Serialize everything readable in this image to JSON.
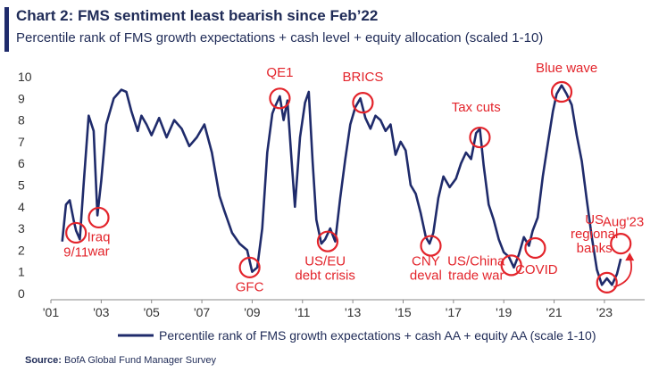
{
  "header": {
    "title": "Chart 2: FMS sentiment least bearish since Feb’22",
    "subtitle": "Percentile rank of FMS growth expectations + cash level + equity allocation (scaled 1-10)"
  },
  "footer": {
    "source_label": "Source:",
    "source_text": "BofA Global Fund Manager Survey"
  },
  "colors": {
    "line": "#1f2b6b",
    "annotation": "#e3242b",
    "accent": "#1f2b6b",
    "text": "#1f2b57"
  },
  "chart_data": {
    "type": "line",
    "title": "Chart 2: FMS sentiment least bearish since Feb’22",
    "subtitle": "Percentile rank of FMS growth expectations + cash level + equity allocation (scaled 1-10)",
    "xlabel": "",
    "ylabel": "",
    "xlim": [
      2001.0,
      2024.6
    ],
    "ylim": [
      0,
      10
    ],
    "y_ticks": [
      0,
      1,
      2,
      3,
      4,
      5,
      6,
      7,
      8,
      9,
      10
    ],
    "x_ticks": [
      2001,
      2003,
      2005,
      2007,
      2009,
      2011,
      2013,
      2015,
      2017,
      2019,
      2021,
      2023
    ],
    "x_tick_labels": [
      "'01",
      "'03",
      "'05",
      "'07",
      "'09",
      "'11",
      "'13",
      "'15",
      "'17",
      "'19",
      "'21",
      "'23"
    ],
    "grid": false,
    "legend_position": "bottom",
    "series": [
      {
        "name": "Percentile rank of FMS growth expectations + cash AA + equity AA (scale 1-10)",
        "x": [
          2001.45,
          2001.6,
          2001.75,
          2001.9,
          2002.0,
          2002.15,
          2002.3,
          2002.5,
          2002.7,
          2002.85,
          2003.0,
          2003.2,
          2003.5,
          2003.8,
          2004.0,
          2004.2,
          2004.45,
          2004.6,
          2004.8,
          2005.0,
          2005.3,
          2005.6,
          2005.9,
          2006.2,
          2006.5,
          2006.8,
          2007.1,
          2007.4,
          2007.7,
          2007.9,
          2008.2,
          2008.5,
          2008.8,
          2009.0,
          2009.2,
          2009.4,
          2009.6,
          2009.8,
          2009.9,
          2010.1,
          2010.25,
          2010.4,
          2010.55,
          2010.7,
          2010.9,
          2011.1,
          2011.25,
          2011.4,
          2011.55,
          2011.75,
          2011.9,
          2012.1,
          2012.3,
          2012.5,
          2012.7,
          2012.9,
          2013.1,
          2013.3,
          2013.5,
          2013.7,
          2013.9,
          2014.1,
          2014.3,
          2014.5,
          2014.7,
          2014.9,
          2015.1,
          2015.3,
          2015.5,
          2015.7,
          2015.9,
          2016.05,
          2016.2,
          2016.4,
          2016.6,
          2016.85,
          2017.1,
          2017.3,
          2017.5,
          2017.7,
          2017.9,
          2018.05,
          2018.2,
          2018.4,
          2018.6,
          2018.8,
          2019.0,
          2019.2,
          2019.4,
          2019.6,
          2019.8,
          2020.0,
          2020.15,
          2020.35,
          2020.55,
          2020.75,
          2020.95,
          2021.1,
          2021.3,
          2021.5,
          2021.7,
          2021.9,
          2022.1,
          2022.3,
          2022.5,
          2022.7,
          2022.9,
          2023.1,
          2023.3,
          2023.5,
          2023.65
        ],
        "values": [
          2.4,
          4.1,
          4.3,
          3.4,
          2.9,
          2.5,
          5.0,
          8.2,
          7.5,
          3.6,
          5.2,
          7.8,
          9.0,
          9.4,
          9.3,
          8.4,
          7.5,
          8.2,
          7.8,
          7.3,
          8.1,
          7.2,
          8.0,
          7.6,
          6.8,
          7.2,
          7.8,
          6.5,
          4.5,
          3.8,
          2.8,
          2.3,
          2.0,
          1.0,
          1.2,
          3.0,
          6.5,
          8.3,
          8.6,
          9.1,
          8.0,
          8.9,
          6.4,
          4.0,
          7.2,
          8.8,
          9.3,
          6.1,
          3.4,
          2.3,
          2.5,
          3.0,
          2.4,
          4.4,
          6.2,
          7.8,
          8.6,
          9.0,
          8.1,
          7.6,
          8.2,
          8.0,
          7.5,
          7.8,
          6.4,
          7.0,
          6.6,
          5.0,
          4.6,
          3.7,
          2.6,
          2.3,
          2.8,
          4.4,
          5.4,
          4.9,
          5.3,
          6.0,
          6.5,
          6.2,
          7.4,
          7.6,
          5.9,
          4.1,
          3.4,
          2.5,
          1.9,
          1.7,
          1.2,
          1.8,
          2.6,
          2.2,
          2.9,
          3.5,
          5.4,
          6.9,
          8.4,
          9.2,
          9.6,
          9.2,
          8.7,
          7.3,
          6.1,
          4.3,
          2.6,
          1.1,
          0.4,
          0.7,
          0.4,
          0.9,
          1.6
        ]
      }
    ],
    "annotations": [
      {
        "label": "9/11",
        "x": 2002.0,
        "y": 2.8,
        "label_x": 2002.0,
        "label_y": 1.7
      },
      {
        "label": "Iraq\nwar",
        "x": 2002.9,
        "y": 3.5,
        "label_x": 2002.9,
        "label_y": 2.4
      },
      {
        "label": "GFC",
        "x": 2008.9,
        "y": 1.2,
        "label_x": 2008.9,
        "label_y": 0.1
      },
      {
        "label": "QE1",
        "x": 2010.1,
        "y": 9.0,
        "label_x": 2010.1,
        "label_y": 10.0
      },
      {
        "label": "US/EU\ndebt crisis",
        "x": 2012.0,
        "y": 2.4,
        "label_x": 2011.9,
        "label_y": 1.3
      },
      {
        "label": "BRICS",
        "x": 2013.4,
        "y": 8.8,
        "label_x": 2013.4,
        "label_y": 9.8
      },
      {
        "label": "CNY\ndeval",
        "x": 2016.1,
        "y": 2.2,
        "label_x": 2015.9,
        "label_y": 1.3
      },
      {
        "label": "Tax cuts",
        "x": 2018.05,
        "y": 7.2,
        "label_x": 2017.9,
        "label_y": 8.4
      },
      {
        "label": "US/China\ntrade war",
        "x": 2019.3,
        "y": 1.3,
        "label_x": 2017.9,
        "label_y": 1.3
      },
      {
        "label": "COVID",
        "x": 2020.25,
        "y": 2.1,
        "label_x": 2020.3,
        "label_y": 0.9
      },
      {
        "label": "Blue wave",
        "x": 2021.3,
        "y": 9.3,
        "label_x": 2021.5,
        "label_y": 10.2
      },
      {
        "label": "US\nregional\nbanks",
        "x": 2023.1,
        "y": 0.5,
        "label_x": 2022.6,
        "label_y": 3.2
      },
      {
        "label": "Aug'23",
        "x": 2023.65,
        "y": 2.3,
        "label_x": 2023.75,
        "label_y": 3.1
      }
    ]
  }
}
